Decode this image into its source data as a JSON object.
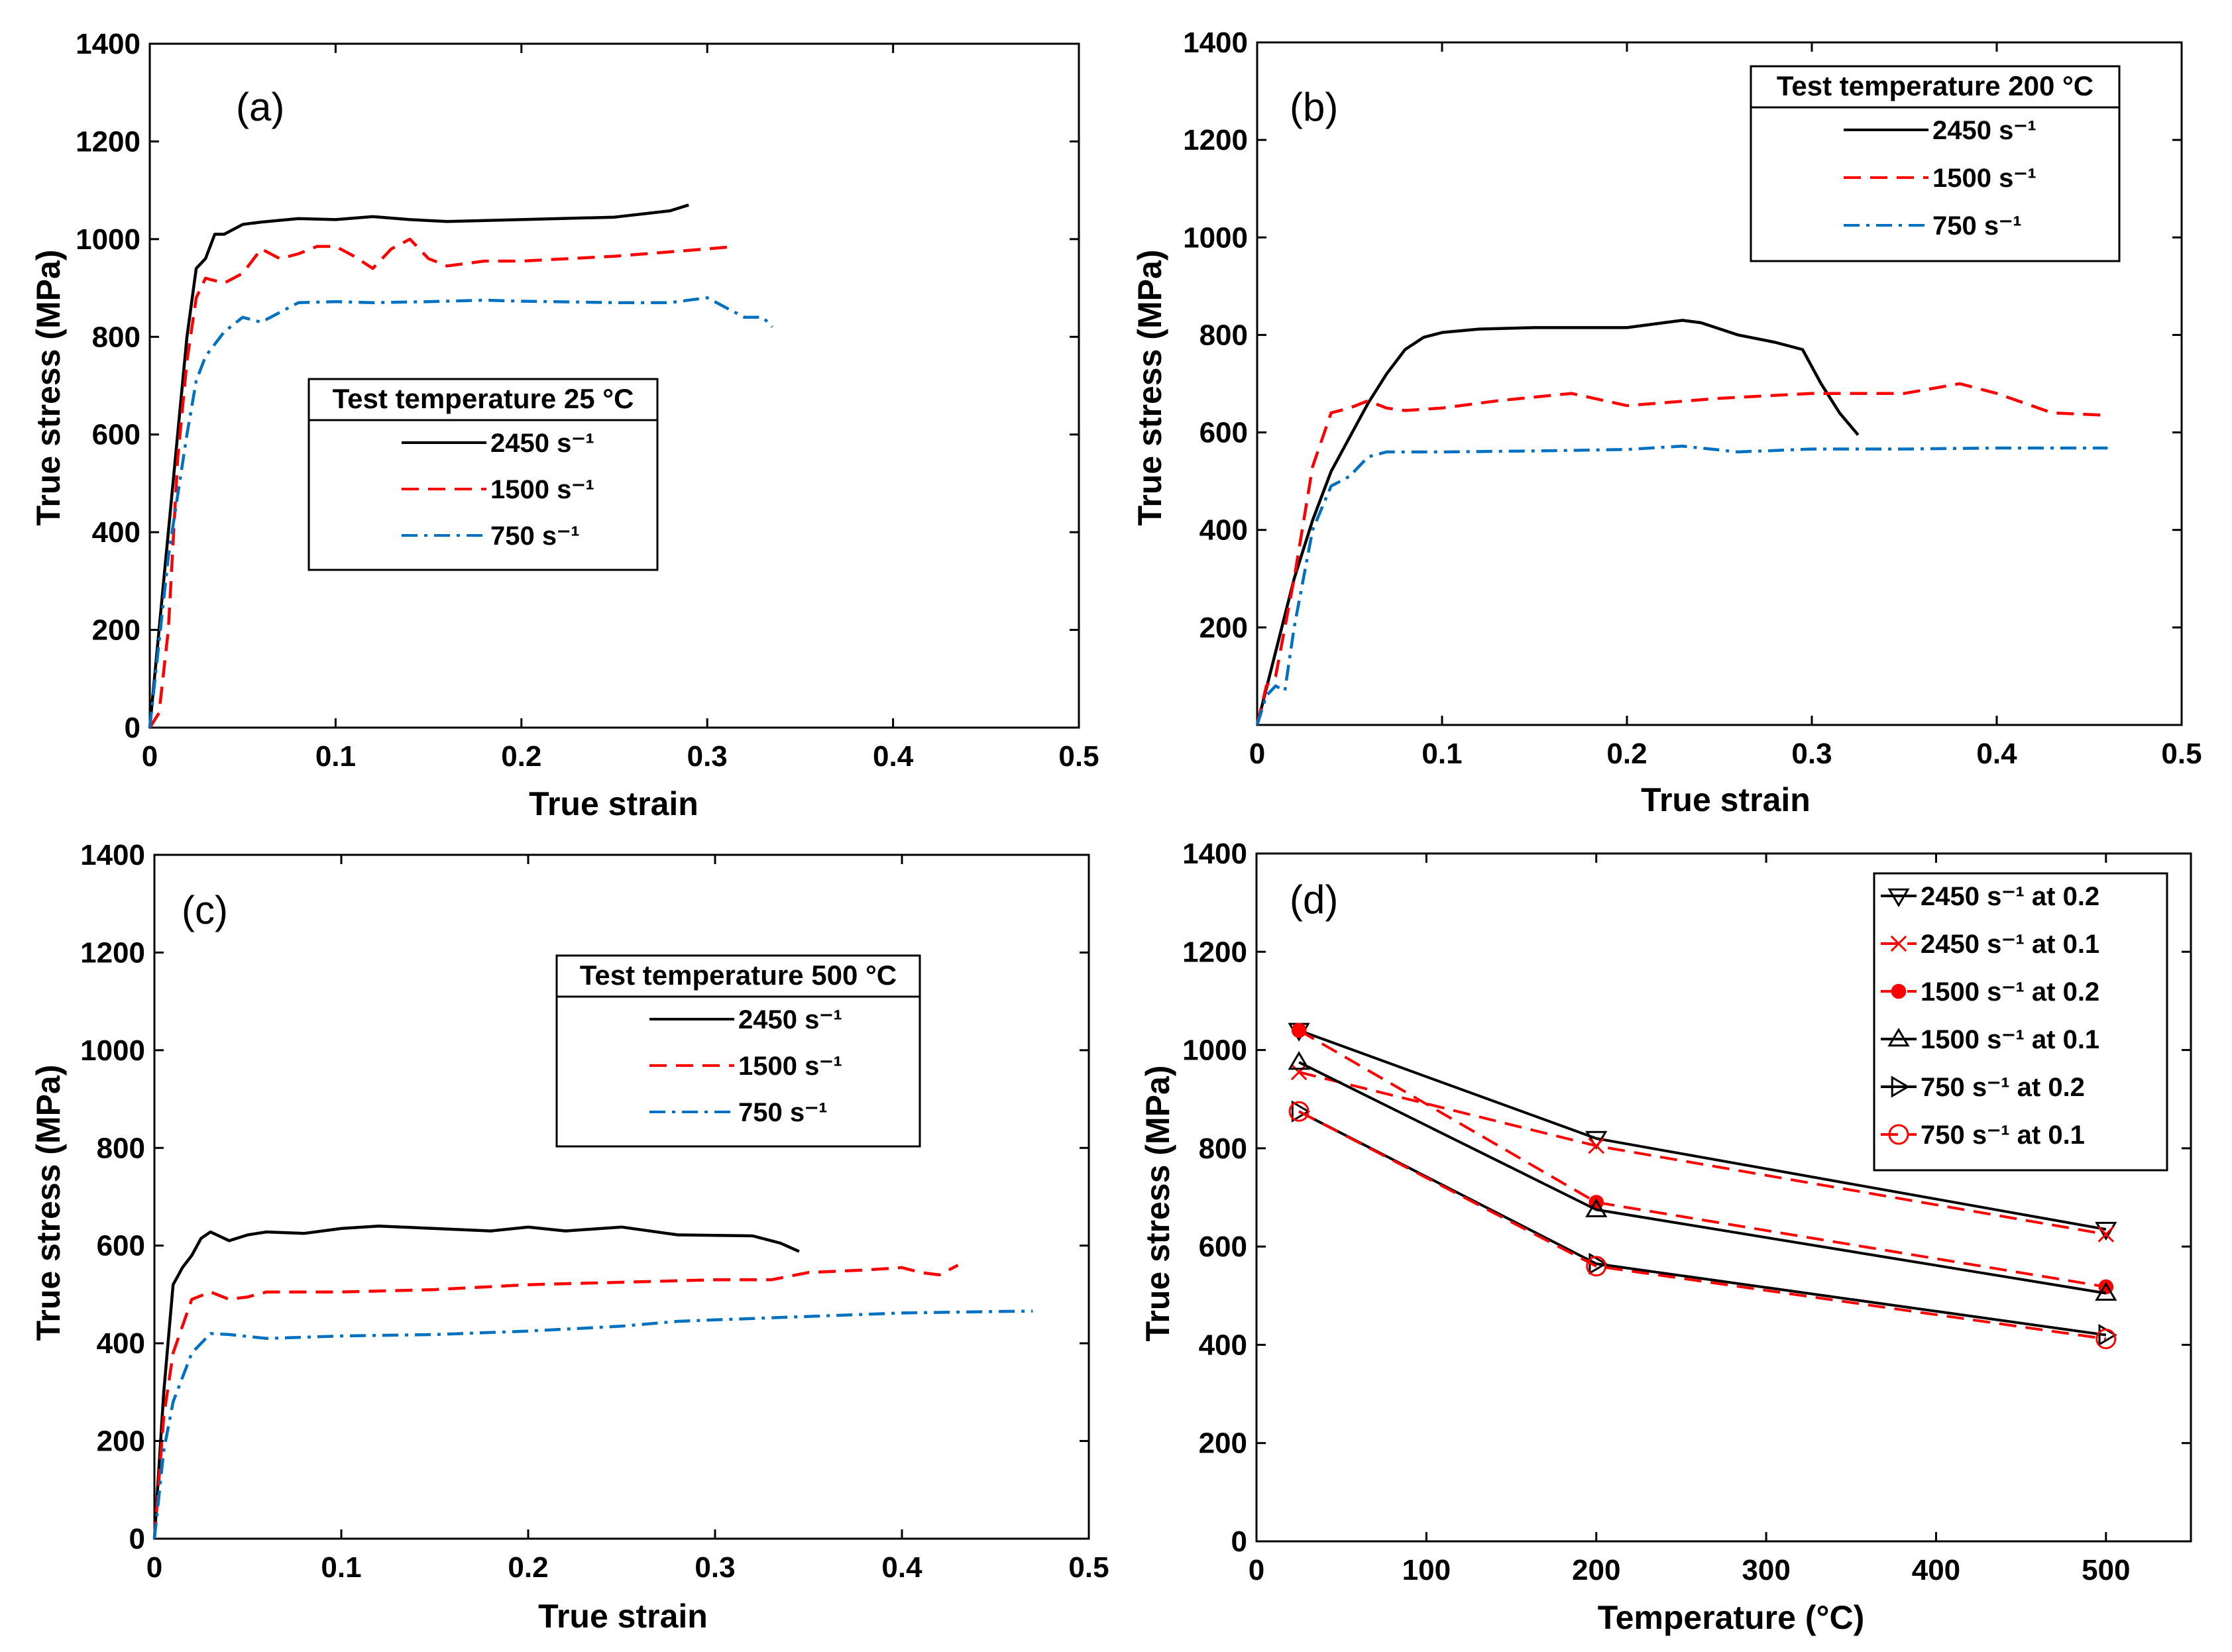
{
  "chart_data": [
    {
      "type": "line",
      "panel_label": "(a)",
      "xlabel": "True strain",
      "ylabel": "True stress (MPa)",
      "xlim": [
        0,
        0.5
      ],
      "ylim": [
        0,
        1400
      ],
      "xticks": [
        "0",
        "0.1",
        "0.2",
        "0.3",
        "0.4",
        "0.5"
      ],
      "yticks": [
        "0",
        "200",
        "400",
        "600",
        "800",
        "1000",
        "1200",
        "1400"
      ],
      "legend_title": "Test temperature 25 °C",
      "legend_position": "center",
      "series": [
        {
          "name": "2450 s⁻¹",
          "color": "#000000",
          "dash": "solid",
          "x": [
            0,
            0.01,
            0.02,
            0.025,
            0.03,
            0.035,
            0.04,
            0.05,
            0.06,
            0.08,
            0.1,
            0.12,
            0.14,
            0.16,
            0.2,
            0.25,
            0.28,
            0.29
          ],
          "y": [
            0,
            400,
            800,
            940,
            960,
            1010,
            1010,
            1030,
            1035,
            1042,
            1040,
            1046,
            1040,
            1036,
            1040,
            1045,
            1058,
            1070
          ]
        },
        {
          "name": "1500 s⁻¹",
          "color": "#ff0000",
          "dash": "dashed",
          "x": [
            0,
            0.005,
            0.01,
            0.015,
            0.02,
            0.025,
            0.03,
            0.04,
            0.05,
            0.06,
            0.07,
            0.08,
            0.09,
            0.1,
            0.11,
            0.12,
            0.13,
            0.14,
            0.15,
            0.16,
            0.18,
            0.2,
            0.25,
            0.3,
            0.315
          ],
          "y": [
            0,
            30,
            200,
            550,
            750,
            880,
            920,
            910,
            930,
            980,
            960,
            970,
            985,
            985,
            965,
            940,
            980,
            1000,
            960,
            945,
            955,
            955,
            965,
            980,
            985
          ]
        },
        {
          "name": "750 s⁻¹",
          "color": "#0070c0",
          "dash": "dashdot",
          "x": [
            0,
            0.01,
            0.02,
            0.025,
            0.03,
            0.04,
            0.05,
            0.06,
            0.07,
            0.08,
            0.1,
            0.12,
            0.15,
            0.18,
            0.2,
            0.25,
            0.28,
            0.3,
            0.31,
            0.32,
            0.33,
            0.335
          ],
          "y": [
            0,
            350,
            600,
            710,
            760,
            810,
            840,
            830,
            850,
            870,
            872,
            870,
            872,
            875,
            873,
            870,
            870,
            880,
            860,
            840,
            840,
            820
          ]
        }
      ]
    },
    {
      "type": "line",
      "panel_label": "(b)",
      "xlabel": "True strain",
      "ylabel": "True stress (MPa)",
      "xlim": [
        0,
        0.5
      ],
      "ylim": [
        0,
        1400
      ],
      "xticks": [
        "0",
        "0.1",
        "0.2",
        "0.3",
        "0.4",
        "0.5"
      ],
      "yticks": [
        "200",
        "400",
        "600",
        "800",
        "1000",
        "1200",
        "1400"
      ],
      "legend_title": "Test temperature 200 °C",
      "legend_position": "top-right",
      "series": [
        {
          "name": "2450 s⁻¹",
          "color": "#000000",
          "dash": "solid",
          "x": [
            0,
            0.01,
            0.02,
            0.03,
            0.04,
            0.05,
            0.06,
            0.07,
            0.08,
            0.09,
            0.1,
            0.12,
            0.15,
            0.2,
            0.22,
            0.23,
            0.24,
            0.26,
            0.28,
            0.295,
            0.305,
            0.315,
            0.325
          ],
          "y": [
            0,
            150,
            300,
            420,
            520,
            590,
            660,
            720,
            770,
            795,
            805,
            812,
            815,
            815,
            825,
            830,
            825,
            800,
            785,
            770,
            700,
            640,
            595
          ]
        },
        {
          "name": "1500 s⁻¹",
          "color": "#ff0000",
          "dash": "dashed",
          "x": [
            0,
            0.005,
            0.01,
            0.02,
            0.03,
            0.04,
            0.05,
            0.06,
            0.07,
            0.08,
            0.1,
            0.13,
            0.17,
            0.2,
            0.25,
            0.3,
            0.35,
            0.38,
            0.4,
            0.43,
            0.46
          ],
          "y": [
            0,
            80,
            100,
            300,
            530,
            640,
            650,
            665,
            650,
            645,
            650,
            665,
            680,
            655,
            670,
            680,
            680,
            700,
            680,
            640,
            635
          ]
        },
        {
          "name": "750 s⁻¹",
          "color": "#0070c0",
          "dash": "dashdot",
          "x": [
            0,
            0.005,
            0.01,
            0.015,
            0.02,
            0.03,
            0.04,
            0.05,
            0.06,
            0.07,
            0.1,
            0.15,
            0.2,
            0.23,
            0.26,
            0.3,
            0.35,
            0.4,
            0.46
          ],
          "y": [
            0,
            60,
            80,
            70,
            200,
            400,
            490,
            510,
            550,
            560,
            560,
            562,
            565,
            572,
            560,
            566,
            566,
            568,
            568
          ]
        }
      ]
    },
    {
      "type": "line",
      "panel_label": "(c)",
      "xlabel": "True strain",
      "ylabel": "True stress (MPa)",
      "xlim": [
        0,
        0.5
      ],
      "ylim": [
        0,
        1400
      ],
      "xticks": [
        "0",
        "0.1",
        "0.2",
        "0.3",
        "0.4",
        "0.5"
      ],
      "yticks": [
        "0",
        "200",
        "400",
        "600",
        "800",
        "1000",
        "1200",
        "1400"
      ],
      "legend_title": "Test temperature 500 °C",
      "legend_position": "center-right",
      "series": [
        {
          "name": "2450 s⁻¹",
          "color": "#000000",
          "dash": "solid",
          "x": [
            0,
            0.005,
            0.01,
            0.015,
            0.02,
            0.025,
            0.03,
            0.04,
            0.05,
            0.06,
            0.08,
            0.1,
            0.12,
            0.15,
            0.18,
            0.2,
            0.22,
            0.25,
            0.28,
            0.32,
            0.335,
            0.345
          ],
          "y": [
            0,
            300,
            520,
            555,
            580,
            615,
            628,
            610,
            622,
            628,
            625,
            635,
            640,
            635,
            630,
            638,
            630,
            638,
            622,
            620,
            605,
            588
          ]
        },
        {
          "name": "1500 s⁻¹",
          "color": "#ff0000",
          "dash": "dashed",
          "x": [
            0,
            0.005,
            0.01,
            0.02,
            0.03,
            0.04,
            0.05,
            0.06,
            0.08,
            0.1,
            0.15,
            0.2,
            0.25,
            0.3,
            0.33,
            0.35,
            0.38,
            0.4,
            0.41,
            0.42,
            0.43
          ],
          "y": [
            0,
            250,
            380,
            490,
            505,
            490,
            495,
            505,
            505,
            505,
            510,
            520,
            525,
            530,
            530,
            545,
            550,
            555,
            545,
            540,
            560
          ]
        },
        {
          "name": "750 s⁻¹",
          "color": "#0070c0",
          "dash": "dashdot",
          "x": [
            0,
            0.005,
            0.01,
            0.02,
            0.03,
            0.04,
            0.06,
            0.1,
            0.15,
            0.2,
            0.25,
            0.28,
            0.3,
            0.35,
            0.4,
            0.45,
            0.47
          ],
          "y": [
            0,
            180,
            280,
            380,
            420,
            418,
            410,
            415,
            418,
            425,
            435,
            445,
            448,
            455,
            462,
            465,
            466
          ]
        }
      ]
    },
    {
      "type": "line",
      "panel_label": "(d)",
      "xlabel": "Temperature (°C)",
      "ylabel": "True stress (MPa)",
      "xlim": [
        0,
        550
      ],
      "ylim": [
        0,
        1400
      ],
      "xticks": [
        "0",
        "100",
        "200",
        "300",
        "400",
        "500"
      ],
      "yticks": [
        "0",
        "200",
        "400",
        "600",
        "800",
        "1000",
        "1200",
        "1400"
      ],
      "legend_position": "top-right",
      "series": [
        {
          "name": "2450 s⁻¹ at 0.2",
          "color": "#000000",
          "dash": "solid",
          "marker": "triangle-down",
          "x": [
            25,
            200,
            500
          ],
          "y": [
            1040,
            820,
            635
          ]
        },
        {
          "name": "2450 s⁻¹ at 0.1",
          "color": "#ff0000",
          "dash": "dashed",
          "marker": "x",
          "x": [
            25,
            200,
            500
          ],
          "y": [
            955,
            805,
            625
          ]
        },
        {
          "name": "1500 s⁻¹ at 0.2",
          "color": "#ff0000",
          "dash": "dashed",
          "marker": "filled-circle",
          "x": [
            25,
            200,
            500
          ],
          "y": [
            1040,
            690,
            518
          ]
        },
        {
          "name": "1500 s⁻¹ at 0.1",
          "color": "#000000",
          "dash": "solid",
          "marker": "triangle-up",
          "x": [
            25,
            200,
            500
          ],
          "y": [
            975,
            675,
            505
          ]
        },
        {
          "name": "750 s⁻¹ at 0.2",
          "color": "#000000",
          "dash": "solid",
          "marker": "triangle-right",
          "x": [
            25,
            200,
            500
          ],
          "y": [
            875,
            565,
            420
          ]
        },
        {
          "name": "750 s⁻¹ at 0.1",
          "color": "#ff0000",
          "dash": "dashed",
          "marker": "open-circle",
          "x": [
            25,
            200,
            500
          ],
          "y": [
            875,
            560,
            412
          ]
        }
      ]
    }
  ]
}
